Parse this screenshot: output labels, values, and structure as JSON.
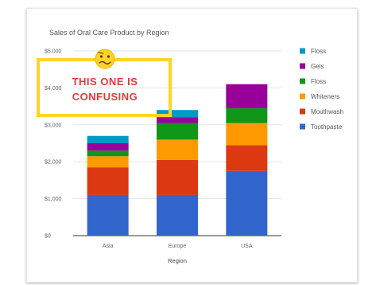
{
  "chart_data": {
    "type": "bar",
    "stacked": true,
    "title": "Sales of Oral Care Product by Region",
    "xlabel": "Region",
    "ylabel": "",
    "categories": [
      "Asia",
      "Europe",
      "USA"
    ],
    "ylim": [
      0,
      5000
    ],
    "yticks": [
      "$0",
      "$1,000",
      "$2,000",
      "$3,000",
      "$4,000",
      "$5,000"
    ],
    "grid": true,
    "legend_position": "right",
    "series": [
      {
        "name": "Toothpaste",
        "color": "#3366cc",
        "values": [
          1100,
          1100,
          1750
        ]
      },
      {
        "name": "Mouthwash",
        "color": "#dc3912",
        "values": [
          750,
          950,
          700
        ]
      },
      {
        "name": "Whiteners",
        "color": "#ff9900",
        "values": [
          300,
          550,
          600
        ]
      },
      {
        "name": "Floss",
        "color": "#109618",
        "values": [
          150,
          450,
          400
        ]
      },
      {
        "name": "Gels",
        "color": "#990099",
        "values": [
          200,
          150,
          650
        ]
      },
      {
        "name": "Floss",
        "color": "#0099c6",
        "values": [
          200,
          200,
          0
        ]
      }
    ],
    "legend_order": [
      5,
      4,
      3,
      2,
      1,
      0
    ]
  },
  "annotation": {
    "text_line1": "THIS ONE IS",
    "text_line2": "CONFUSING",
    "box_color": "#ffd428",
    "text_color": "#e53935",
    "emoji": "confused-face"
  }
}
